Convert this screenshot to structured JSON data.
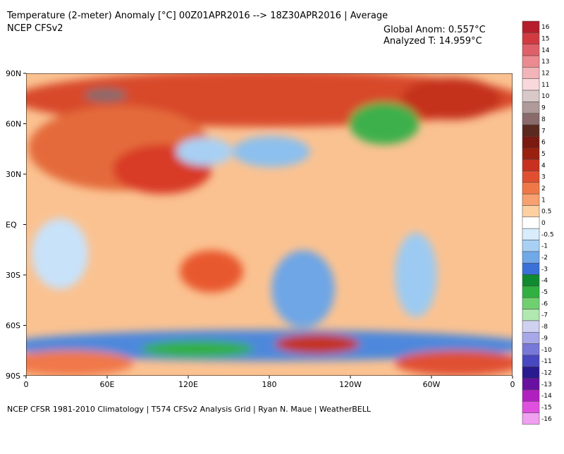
{
  "header": {
    "title": "Temperature (2-meter) Anomaly  [°C] 00Z01APR2016 --> 18Z30APR2016 | Average",
    "model": "NCEP CFSv2",
    "global_anom": "Global Anom: 0.557°C",
    "analyzed_t": "Analyzed T: 14.959°C"
  },
  "map": {
    "lat_labels": [
      "90N",
      "60N",
      "30N",
      "EQ",
      "30S",
      "60S",
      "90S"
    ],
    "lon_labels": [
      "0",
      "60E",
      "120E",
      "180",
      "120W",
      "60W",
      "0"
    ]
  },
  "colorbar": {
    "labels": [
      16,
      15,
      14,
      13,
      12,
      11,
      10,
      9,
      8,
      7,
      6,
      5,
      4,
      3,
      2,
      1,
      0.5,
      0,
      -0.5,
      -1,
      -2,
      -3,
      -4,
      -5,
      -6,
      -7,
      -8,
      -9,
      -10,
      -11,
      -12,
      -13,
      -14,
      -15,
      -16
    ],
    "colors": [
      "#b51e2a",
      "#d23a42",
      "#e0606a",
      "#eb8a90",
      "#f2b4b8",
      "#f8d8da",
      "#d8c8c8",
      "#b09a9a",
      "#8a6a6a",
      "#5a2a20",
      "#7a1a10",
      "#9a2010",
      "#c83020",
      "#e05030",
      "#f07848",
      "#f8a070",
      "#fcd0a0",
      "#ffffff",
      "#d8ecfc",
      "#a8d0f4",
      "#70a8e8",
      "#3a70d8",
      "#108a30",
      "#30b040",
      "#70d070",
      "#b0e8b0",
      "#d0d0f0",
      "#a8a8e8",
      "#7878d8",
      "#4848c0",
      "#2a1a90",
      "#6a10a0",
      "#b020c0",
      "#e050e0",
      "#f0a0f0"
    ]
  },
  "footer": "NCEP CFSR 1981-2010 Climatology | T574 CFSv2 Analysis Grid | Ryan N. Maue | WeatherBELL"
}
